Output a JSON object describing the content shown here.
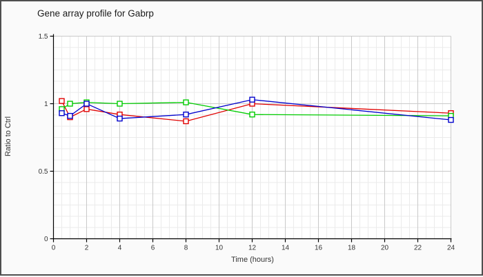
{
  "window": {
    "background": "#fafafa",
    "border_color": "#4f4f4f"
  },
  "title": "Gene array profile for Gabrp",
  "chart_data": {
    "type": "line",
    "title": "Gene array profile for Gabrp",
    "xlabel": "Time (hours)",
    "ylabel": "Ratio to Ctrl",
    "xlim": [
      0,
      24
    ],
    "ylim": [
      0,
      1.5
    ],
    "x_ticks": [
      0,
      2,
      4,
      6,
      8,
      10,
      12,
      14,
      16,
      18,
      20,
      22,
      24
    ],
    "y_ticks": [
      0,
      0.5,
      1,
      1.5
    ],
    "y_tick_labels": [
      "0",
      "0.5",
      "1",
      "1.5"
    ],
    "grid": "major and minor, gray on white",
    "legend_position": "none",
    "marker": "open-square",
    "x": [
      0.5,
      1,
      2,
      4,
      8,
      12,
      24
    ],
    "series": [
      {
        "name": "red-series",
        "color": "#e00000",
        "values": [
          1.02,
          0.9,
          0.96,
          0.92,
          0.87,
          1.0,
          0.93
        ]
      },
      {
        "name": "green-series",
        "color": "#00cc00",
        "values": [
          0.96,
          1.0,
          1.01,
          1.0,
          1.01,
          0.92,
          0.91
        ]
      },
      {
        "name": "blue-series",
        "color": "#0000cc",
        "values": [
          0.93,
          0.91,
          1.0,
          0.89,
          0.92,
          1.03,
          0.88
        ]
      }
    ],
    "colors": {
      "axis": "#000000",
      "tick_text": "#333333",
      "grid_minor": "#ebebeb",
      "grid_major": "#c9c9c9",
      "plot_background": "#ffffff"
    }
  }
}
